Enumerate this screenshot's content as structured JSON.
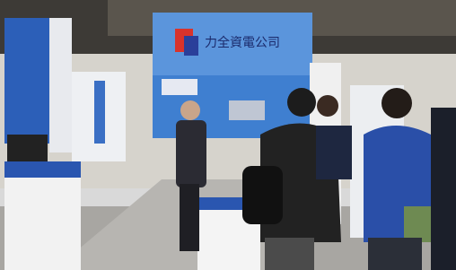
{
  "scene": {
    "booth_sign": "力全資電公司"
  }
}
